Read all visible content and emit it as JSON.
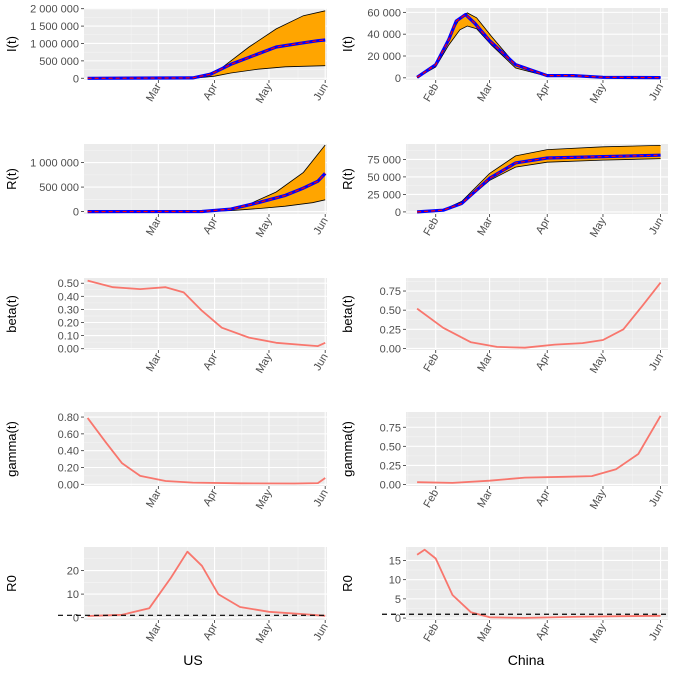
{
  "colors": {
    "band_fill": "#FFA500",
    "band_edge": "#000000",
    "observed": "#0000FF",
    "fit_dash": "#FF0000",
    "smooth_line": "#F8766D",
    "reference_line": "#000000"
  },
  "column_labels": [
    "US",
    "China"
  ],
  "chart_data": [
    {
      "type": "area",
      "ylabel": "I(t)",
      "column": "US",
      "x_ticks": [
        "Mar",
        "Apr",
        "May",
        "Jun"
      ],
      "x_range": [
        "2020-01-20",
        "2020-06-02"
      ],
      "y_ticks": [
        0,
        500000,
        1000000,
        1500000,
        2000000
      ],
      "y_tick_labels": [
        "0",
        "500 000",
        "1 000 000",
        "1 500 000",
        "2 000 000"
      ],
      "ylim": [
        -50000,
        2020000
      ],
      "band_upper": [
        [
          "2020-01-22",
          0
        ],
        [
          "2020-03-15",
          0
        ],
        [
          "2020-03-25",
          40000
        ],
        [
          "2020-04-05",
          300000
        ],
        [
          "2020-04-20",
          900000
        ],
        [
          "2020-05-05",
          1420000
        ],
        [
          "2020-05-20",
          1800000
        ],
        [
          "2020-06-01",
          1940000
        ]
      ],
      "band_lower": [
        [
          "2020-01-22",
          0
        ],
        [
          "2020-03-20",
          0
        ],
        [
          "2020-04-01",
          60000
        ],
        [
          "2020-04-10",
          150000
        ],
        [
          "2020-04-25",
          260000
        ],
        [
          "2020-05-10",
          330000
        ],
        [
          "2020-06-01",
          360000
        ]
      ],
      "observed": [
        [
          "2020-01-22",
          0
        ],
        [
          "2020-03-20",
          10000
        ],
        [
          "2020-03-30",
          120000
        ],
        [
          "2020-04-10",
          400000
        ],
        [
          "2020-04-25",
          700000
        ],
        [
          "2020-05-05",
          900000
        ],
        [
          "2020-05-20",
          1020000
        ],
        [
          "2020-05-28",
          1080000
        ],
        [
          "2020-06-01",
          1100000
        ]
      ]
    },
    {
      "type": "area",
      "ylabel": "I(t)",
      "column": "China",
      "x_ticks": [
        "Feb",
        "Mar",
        "Apr",
        "May",
        "Jun"
      ],
      "x_range": [
        "2020-01-16",
        "2020-06-05"
      ],
      "y_ticks": [
        0,
        20000,
        40000,
        60000
      ],
      "y_tick_labels": [
        "0",
        "20 000",
        "40 000",
        "60 000"
      ],
      "ylim": [
        -2000,
        64000
      ],
      "band_upper": [
        [
          "2020-01-22",
          0
        ],
        [
          "2020-02-01",
          12000
        ],
        [
          "2020-02-08",
          36000
        ],
        [
          "2020-02-14",
          55000
        ],
        [
          "2020-02-18",
          59500
        ],
        [
          "2020-02-23",
          55000
        ],
        [
          "2020-03-02",
          38000
        ],
        [
          "2020-03-15",
          12000
        ],
        [
          "2020-04-01",
          2500
        ],
        [
          "2020-05-01",
          600
        ],
        [
          "2020-06-01",
          200
        ]
      ],
      "band_lower": [
        [
          "2020-01-22",
          0
        ],
        [
          "2020-02-01",
          10000
        ],
        [
          "2020-02-08",
          30000
        ],
        [
          "2020-02-14",
          44000
        ],
        [
          "2020-02-18",
          47500
        ],
        [
          "2020-02-23",
          45000
        ],
        [
          "2020-03-02",
          30000
        ],
        [
          "2020-03-15",
          9000
        ],
        [
          "2020-04-01",
          1500
        ],
        [
          "2020-05-01",
          300
        ],
        [
          "2020-06-01",
          100
        ]
      ],
      "observed": [
        [
          "2020-01-22",
          500
        ],
        [
          "2020-02-01",
          12000
        ],
        [
          "2020-02-08",
          35000
        ],
        [
          "2020-02-12",
          52000
        ],
        [
          "2020-02-17",
          58000
        ],
        [
          "2020-02-22",
          50000
        ],
        [
          "2020-03-01",
          34000
        ],
        [
          "2020-03-15",
          12000
        ],
        [
          "2020-04-01",
          2000
        ],
        [
          "2020-04-15",
          2000
        ],
        [
          "2020-05-01",
          500
        ],
        [
          "2020-06-01",
          200
        ]
      ]
    },
    {
      "type": "area",
      "ylabel": "R(t)",
      "column": "US",
      "x_ticks": [
        "Mar",
        "Apr",
        "May",
        "Jun"
      ],
      "x_range": [
        "2020-01-20",
        "2020-06-02"
      ],
      "y_ticks": [
        0,
        500000,
        1000000
      ],
      "y_tick_labels": [
        "0",
        "500 000",
        "1 000 000"
      ],
      "ylim": [
        -50000,
        1380000
      ],
      "band_upper": [
        [
          "2020-01-22",
          0
        ],
        [
          "2020-03-20",
          0
        ],
        [
          "2020-04-05",
          30000
        ],
        [
          "2020-04-20",
          150000
        ],
        [
          "2020-05-05",
          400000
        ],
        [
          "2020-05-20",
          800000
        ],
        [
          "2020-06-01",
          1360000
        ]
      ],
      "band_lower": [
        [
          "2020-01-22",
          0
        ],
        [
          "2020-03-25",
          0
        ],
        [
          "2020-04-10",
          20000
        ],
        [
          "2020-04-25",
          60000
        ],
        [
          "2020-05-10",
          110000
        ],
        [
          "2020-05-25",
          180000
        ],
        [
          "2020-06-01",
          240000
        ]
      ],
      "observed": [
        [
          "2020-01-22",
          0
        ],
        [
          "2020-03-25",
          2000
        ],
        [
          "2020-04-10",
          50000
        ],
        [
          "2020-04-25",
          180000
        ],
        [
          "2020-05-10",
          330000
        ],
        [
          "2020-05-20",
          480000
        ],
        [
          "2020-05-28",
          620000
        ],
        [
          "2020-06-01",
          780000
        ]
      ]
    },
    {
      "type": "area",
      "ylabel": "R(t)",
      "column": "China",
      "x_ticks": [
        "Feb",
        "Mar",
        "Apr",
        "May",
        "Jun"
      ],
      "x_range": [
        "2020-01-16",
        "2020-06-05"
      ],
      "y_ticks": [
        0,
        25000,
        50000,
        75000
      ],
      "y_tick_labels": [
        "0",
        "25 000",
        "50 000",
        "75 000"
      ],
      "ylim": [
        -3000,
        97000
      ],
      "band_upper": [
        [
          "2020-01-22",
          0
        ],
        [
          "2020-02-05",
          3000
        ],
        [
          "2020-02-15",
          15000
        ],
        [
          "2020-03-01",
          55000
        ],
        [
          "2020-03-15",
          80000
        ],
        [
          "2020-04-01",
          89000
        ],
        [
          "2020-05-01",
          93000
        ],
        [
          "2020-06-01",
          95000
        ]
      ],
      "band_lower": [
        [
          "2020-01-22",
          0
        ],
        [
          "2020-02-05",
          2000
        ],
        [
          "2020-02-15",
          11000
        ],
        [
          "2020-03-01",
          45000
        ],
        [
          "2020-03-15",
          64000
        ],
        [
          "2020-04-01",
          71000
        ],
        [
          "2020-05-01",
          74000
        ],
        [
          "2020-06-01",
          76000
        ]
      ],
      "observed": [
        [
          "2020-01-22",
          0
        ],
        [
          "2020-02-05",
          2500
        ],
        [
          "2020-02-15",
          12000
        ],
        [
          "2020-03-01",
          48000
        ],
        [
          "2020-03-15",
          70000
        ],
        [
          "2020-04-01",
          77000
        ],
        [
          "2020-05-01",
          79000
        ],
        [
          "2020-06-01",
          81000
        ]
      ]
    },
    {
      "type": "line",
      "ylabel": "beta(t)",
      "column": "US",
      "x_ticks": [
        "Mar",
        "Apr",
        "May",
        "Jun"
      ],
      "x_range": [
        "2020-01-20",
        "2020-06-02"
      ],
      "y_ticks": [
        0,
        0.1,
        0.2,
        0.3,
        0.4,
        0.5
      ],
      "y_tick_labels": [
        "0.00",
        "0.10",
        "0.20",
        "0.30",
        "0.40",
        "0.50"
      ],
      "ylim": [
        -0.01,
        0.54
      ],
      "series": [
        [
          "2020-01-22",
          0.52
        ],
        [
          "2020-02-05",
          0.47
        ],
        [
          "2020-02-20",
          0.455
        ],
        [
          "2020-03-05",
          0.47
        ],
        [
          "2020-03-15",
          0.43
        ],
        [
          "2020-03-25",
          0.29
        ],
        [
          "2020-04-05",
          0.16
        ],
        [
          "2020-04-20",
          0.085
        ],
        [
          "2020-05-05",
          0.045
        ],
        [
          "2020-05-20",
          0.028
        ],
        [
          "2020-05-28",
          0.02
        ],
        [
          "2020-06-01",
          0.045
        ]
      ]
    },
    {
      "type": "line",
      "ylabel": "beta(t)",
      "column": "China",
      "x_ticks": [
        "Feb",
        "Mar",
        "Apr",
        "May",
        "Jun"
      ],
      "x_range": [
        "2020-01-16",
        "2020-06-05"
      ],
      "y_ticks": [
        0,
        0.25,
        0.5,
        0.75
      ],
      "y_tick_labels": [
        "0.00",
        "0.25",
        "0.50",
        "0.75"
      ],
      "ylim": [
        -0.02,
        0.92
      ],
      "series": [
        [
          "2020-01-22",
          0.52
        ],
        [
          "2020-02-05",
          0.27
        ],
        [
          "2020-02-20",
          0.08
        ],
        [
          "2020-03-05",
          0.02
        ],
        [
          "2020-03-20",
          0.01
        ],
        [
          "2020-04-05",
          0.05
        ],
        [
          "2020-04-20",
          0.07
        ],
        [
          "2020-05-01",
          0.11
        ],
        [
          "2020-05-12",
          0.25
        ],
        [
          "2020-05-22",
          0.55
        ],
        [
          "2020-06-01",
          0.86
        ]
      ]
    },
    {
      "type": "line",
      "ylabel": "gamma(t)",
      "column": "US",
      "x_ticks": [
        "Mar",
        "Apr",
        "May",
        "Jun"
      ],
      "x_range": [
        "2020-01-20",
        "2020-06-02"
      ],
      "y_ticks": [
        0,
        0.2,
        0.4,
        0.6,
        0.8
      ],
      "y_tick_labels": [
        "0.00",
        "0.20",
        "0.40",
        "0.60",
        "0.80"
      ],
      "ylim": [
        -0.02,
        0.86
      ],
      "series": [
        [
          "2020-01-22",
          0.79
        ],
        [
          "2020-02-01",
          0.5
        ],
        [
          "2020-02-10",
          0.25
        ],
        [
          "2020-02-20",
          0.1
        ],
        [
          "2020-03-05",
          0.04
        ],
        [
          "2020-03-20",
          0.02
        ],
        [
          "2020-04-15",
          0.012
        ],
        [
          "2020-05-15",
          0.01
        ],
        [
          "2020-05-28",
          0.015
        ],
        [
          "2020-06-01",
          0.075
        ]
      ]
    },
    {
      "type": "line",
      "ylabel": "gamma(t)",
      "column": "China",
      "x_ticks": [
        "Feb",
        "Mar",
        "Apr",
        "May",
        "Jun"
      ],
      "x_range": [
        "2020-01-16",
        "2020-06-05"
      ],
      "y_ticks": [
        0,
        0.25,
        0.5,
        0.75
      ],
      "y_tick_labels": [
        "0.00",
        "0.25",
        "0.50",
        "0.75"
      ],
      "ylim": [
        -0.02,
        0.95
      ],
      "series": [
        [
          "2020-01-22",
          0.03
        ],
        [
          "2020-02-10",
          0.02
        ],
        [
          "2020-03-01",
          0.05
        ],
        [
          "2020-03-20",
          0.09
        ],
        [
          "2020-04-10",
          0.1
        ],
        [
          "2020-04-25",
          0.11
        ],
        [
          "2020-05-08",
          0.2
        ],
        [
          "2020-05-20",
          0.4
        ],
        [
          "2020-06-01",
          0.9
        ]
      ]
    },
    {
      "type": "line",
      "ylabel": "R0",
      "column": "US",
      "x_ticks": [
        "Mar",
        "Apr",
        "May",
        "Jun"
      ],
      "x_range": [
        "2020-01-20",
        "2020-06-02"
      ],
      "y_ticks": [
        0,
        10,
        20
      ],
      "y_tick_labels": [
        "0",
        "10",
        "20"
      ],
      "ylim": [
        -1,
        30
      ],
      "reference_line": 1,
      "series": [
        [
          "2020-01-22",
          0.7
        ],
        [
          "2020-02-10",
          1.2
        ],
        [
          "2020-02-25",
          4
        ],
        [
          "2020-03-08",
          17
        ],
        [
          "2020-03-17",
          28
        ],
        [
          "2020-03-25",
          22
        ],
        [
          "2020-04-03",
          10
        ],
        [
          "2020-04-15",
          4.5
        ],
        [
          "2020-05-01",
          2.5
        ],
        [
          "2020-05-20",
          1.5
        ],
        [
          "2020-06-01",
          0.8
        ]
      ]
    },
    {
      "type": "line",
      "ylabel": "R0",
      "column": "China",
      "x_ticks": [
        "Feb",
        "Mar",
        "Apr",
        "May",
        "Jun"
      ],
      "x_range": [
        "2020-01-16",
        "2020-06-05"
      ],
      "y_ticks": [
        0,
        5,
        10,
        15
      ],
      "y_tick_labels": [
        "0",
        "5",
        "10",
        "15"
      ],
      "ylim": [
        -0.5,
        18.5
      ],
      "reference_line": 1,
      "series": [
        [
          "2020-01-22",
          16.5
        ],
        [
          "2020-01-26",
          17.8
        ],
        [
          "2020-02-01",
          15.5
        ],
        [
          "2020-02-10",
          6
        ],
        [
          "2020-02-20",
          1.5
        ],
        [
          "2020-03-01",
          0.2
        ],
        [
          "2020-03-20",
          0.05
        ],
        [
          "2020-04-15",
          0.3
        ],
        [
          "2020-05-10",
          0.5
        ],
        [
          "2020-06-01",
          0.6
        ]
      ]
    }
  ]
}
